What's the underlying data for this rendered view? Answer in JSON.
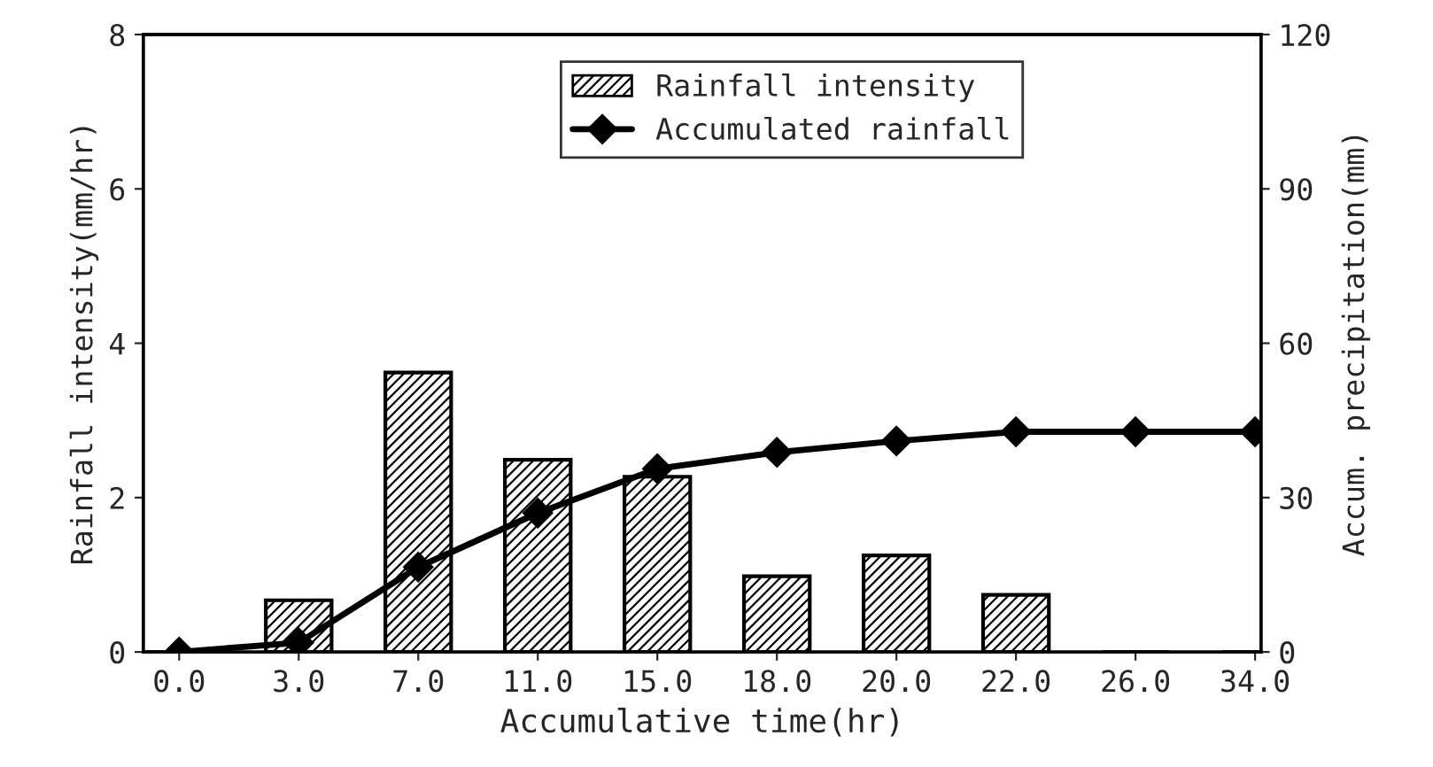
{
  "chart_data": {
    "type": "bar",
    "xlabel": "Accumulative time(hr)",
    "ylabel": "Rainfall intensity(mm/hr)",
    "y2label": "Accum. precipitation(mm)",
    "categories": [
      "0.0",
      "3.0",
      "7.0",
      "11.0",
      "15.0",
      "18.0",
      "20.0",
      "22.0",
      "26.0",
      "34.0"
    ],
    "series": [
      {
        "name": "Rainfall intensity",
        "color": "#000000",
        "values": [
          0,
          0.67,
          3.62,
          2.49,
          2.27,
          0.98,
          1.25,
          0.74,
          0,
          0
        ]
      },
      {
        "name": "Accumulated rainfall",
        "type": "line",
        "axis": "y2",
        "color": "#000000",
        "marker": "diamond",
        "values": [
          0,
          1.8,
          16.5,
          27,
          35.6,
          38.8,
          41,
          42.8,
          42.8,
          42.8
        ]
      }
    ],
    "ylim": [
      0,
      8
    ],
    "yticks": [
      0,
      2,
      4,
      6,
      8
    ],
    "y2lim": [
      0,
      120
    ],
    "y2ticks": [
      0,
      30,
      60,
      90,
      120
    ],
    "grid": false,
    "legend": "top right"
  }
}
